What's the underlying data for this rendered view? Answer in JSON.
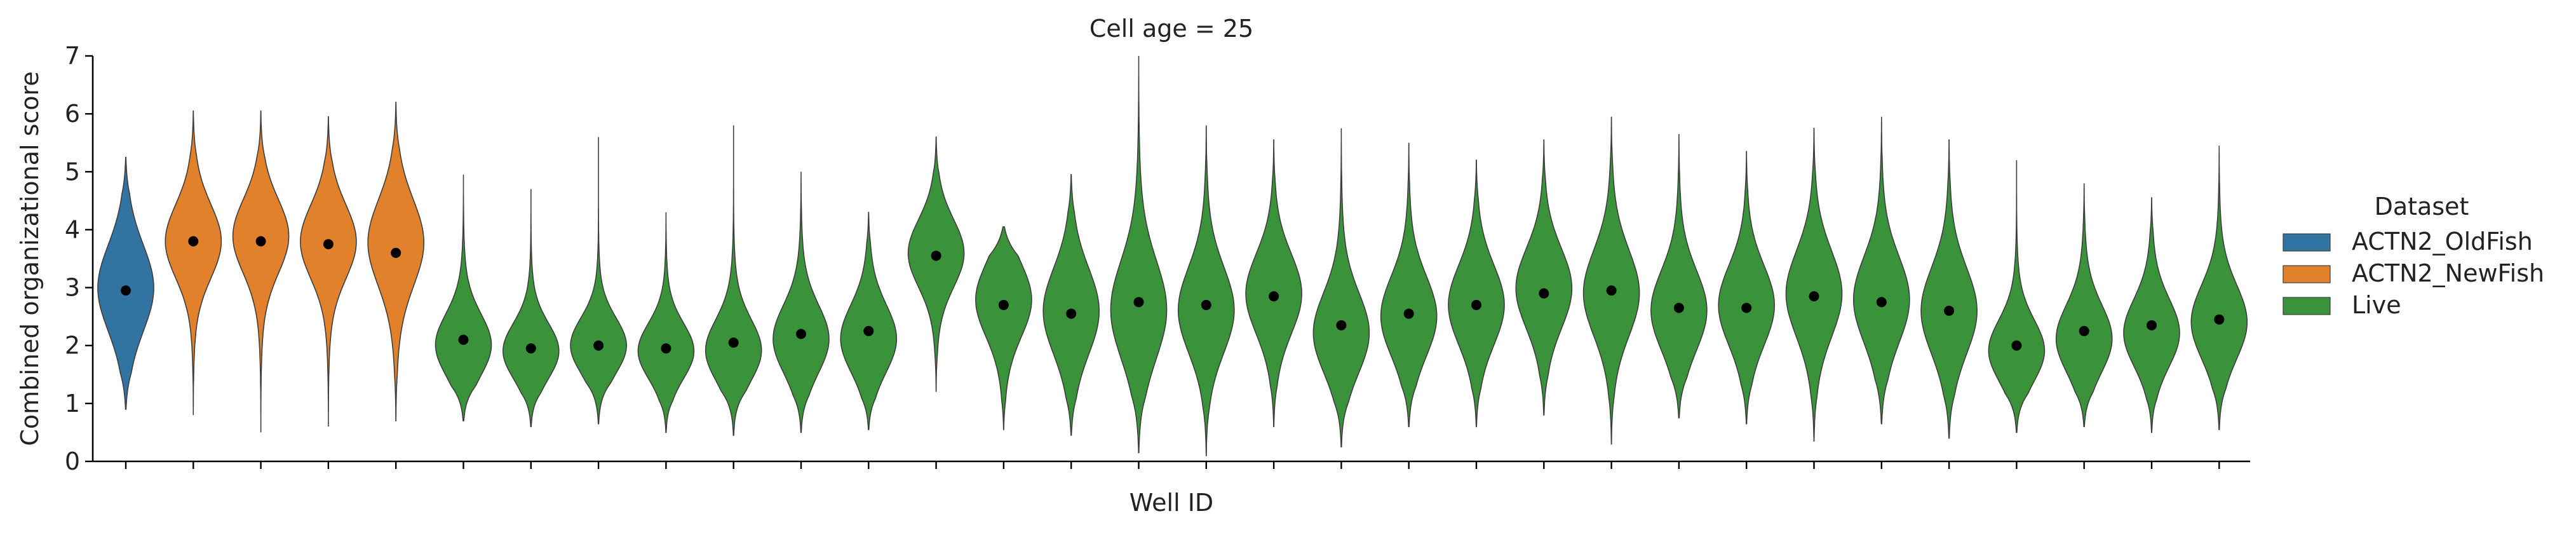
{
  "chart_data": {
    "type": "violin",
    "title": "Cell age = 25",
    "xlabel": "Well ID",
    "ylabel": "Combined organizational score",
    "ylim": [
      0,
      7
    ],
    "yticks": [
      0,
      1,
      2,
      3,
      4,
      5,
      6,
      7
    ],
    "x_tick_labels_visible": false,
    "legend": {
      "title": "Dataset",
      "placement": "right",
      "entries": [
        {
          "name": "ACTN2_OldFish",
          "color": "#3274a1"
        },
        {
          "name": "ACTN2_NewFish",
          "color": "#e1812c"
        },
        {
          "name": "Live",
          "color": "#3a923a"
        }
      ]
    },
    "violins": [
      {
        "group": "ACTN2_OldFish",
        "min": 0.9,
        "max": 5.25,
        "median": 2.95,
        "mode": 3.0,
        "spread": 0.7
      },
      {
        "group": "ACTN2_NewFish",
        "min": 0.8,
        "max": 6.05,
        "median": 3.8,
        "mode": 3.8,
        "spread": 0.6
      },
      {
        "group": "ACTN2_NewFish",
        "min": 0.5,
        "max": 6.05,
        "median": 3.8,
        "mode": 3.9,
        "spread": 0.6
      },
      {
        "group": "ACTN2_NewFish",
        "min": 0.6,
        "max": 5.95,
        "median": 3.75,
        "mode": 3.8,
        "spread": 0.6
      },
      {
        "group": "ACTN2_NewFish",
        "min": 0.7,
        "max": 6.2,
        "median": 3.6,
        "mode": 3.8,
        "spread": 0.7
      },
      {
        "group": "Live",
        "min": 0.7,
        "max": 4.95,
        "median": 2.1,
        "mode": 2.0,
        "spread": 0.5
      },
      {
        "group": "Live",
        "min": 0.6,
        "max": 4.7,
        "median": 1.95,
        "mode": 1.9,
        "spread": 0.45
      },
      {
        "group": "Live",
        "min": 0.65,
        "max": 5.6,
        "median": 2.0,
        "mode": 2.0,
        "spread": 0.45
      },
      {
        "group": "Live",
        "min": 0.5,
        "max": 4.3,
        "median": 1.95,
        "mode": 1.9,
        "spread": 0.45
      },
      {
        "group": "Live",
        "min": 0.45,
        "max": 5.8,
        "median": 2.05,
        "mode": 1.9,
        "spread": 0.5
      },
      {
        "group": "Live",
        "min": 0.5,
        "max": 5.0,
        "median": 2.2,
        "mode": 2.1,
        "spread": 0.55
      },
      {
        "group": "Live",
        "min": 0.55,
        "max": 4.3,
        "median": 2.25,
        "mode": 2.1,
        "spread": 0.55
      },
      {
        "group": "Live",
        "min": 1.2,
        "max": 5.6,
        "median": 3.55,
        "mode": 3.6,
        "spread": 0.55
      },
      {
        "group": "Live",
        "min": 0.55,
        "max": 4.05,
        "median": 2.7,
        "mode": 2.8,
        "spread": 0.6
      },
      {
        "group": "Live",
        "min": 0.45,
        "max": 4.95,
        "median": 2.55,
        "mode": 2.6,
        "spread": 0.7
      },
      {
        "group": "Live",
        "min": 0.15,
        "max": 7.0,
        "median": 2.75,
        "mode": 2.6,
        "spread": 0.8
      },
      {
        "group": "Live",
        "min": 0.1,
        "max": 5.8,
        "median": 2.7,
        "mode": 2.6,
        "spread": 0.7
      },
      {
        "group": "Live",
        "min": 0.6,
        "max": 5.55,
        "median": 2.85,
        "mode": 2.9,
        "spread": 0.65
      },
      {
        "group": "Live",
        "min": 0.25,
        "max": 5.75,
        "median": 2.35,
        "mode": 2.2,
        "spread": 0.65
      },
      {
        "group": "Live",
        "min": 0.6,
        "max": 5.5,
        "median": 2.55,
        "mode": 2.5,
        "spread": 0.65
      },
      {
        "group": "Live",
        "min": 0.6,
        "max": 5.2,
        "median": 2.7,
        "mode": 2.7,
        "spread": 0.65
      },
      {
        "group": "Live",
        "min": 0.8,
        "max": 5.55,
        "median": 2.9,
        "mode": 3.0,
        "spread": 0.65
      },
      {
        "group": "Live",
        "min": 0.3,
        "max": 5.95,
        "median": 2.95,
        "mode": 2.9,
        "spread": 0.7
      },
      {
        "group": "Live",
        "min": 0.75,
        "max": 5.65,
        "median": 2.65,
        "mode": 2.6,
        "spread": 0.65
      },
      {
        "group": "Live",
        "min": 0.65,
        "max": 5.35,
        "median": 2.65,
        "mode": 2.7,
        "spread": 0.65
      },
      {
        "group": "Live",
        "min": 0.35,
        "max": 5.75,
        "median": 2.85,
        "mode": 2.9,
        "spread": 0.7
      },
      {
        "group": "Live",
        "min": 0.65,
        "max": 5.95,
        "median": 2.75,
        "mode": 2.8,
        "spread": 0.7
      },
      {
        "group": "Live",
        "min": 0.4,
        "max": 5.55,
        "median": 2.6,
        "mode": 2.6,
        "spread": 0.7
      },
      {
        "group": "Live",
        "min": 0.5,
        "max": 5.2,
        "median": 2.0,
        "mode": 1.9,
        "spread": 0.5
      },
      {
        "group": "Live",
        "min": 0.6,
        "max": 4.8,
        "median": 2.25,
        "mode": 2.1,
        "spread": 0.55
      },
      {
        "group": "Live",
        "min": 0.5,
        "max": 4.55,
        "median": 2.35,
        "mode": 2.2,
        "spread": 0.55
      },
      {
        "group": "Live",
        "min": 0.55,
        "max": 5.45,
        "median": 2.45,
        "mode": 2.4,
        "spread": 0.6
      }
    ]
  }
}
